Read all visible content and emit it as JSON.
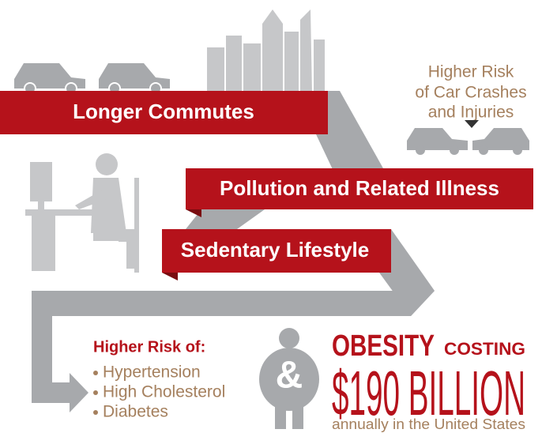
{
  "commutes": {
    "label": "Longer Commutes"
  },
  "crash_risk": {
    "lines": [
      "Higher Risk",
      "of Car Crashes",
      "and Injuries"
    ]
  },
  "pollution": {
    "label": "Pollution and Related Illness"
  },
  "sedentary": {
    "label": "Sedentary Lifestyle"
  },
  "risks": {
    "heading": "Higher Risk of:",
    "items": [
      "Hypertension",
      "High Cholesterol",
      "Diabetes"
    ]
  },
  "obesity": {
    "ampersand": "&",
    "word": "OBESITY",
    "costing": "COSTING",
    "amount": "$190 BILLION",
    "note": "annually in the United States"
  }
}
